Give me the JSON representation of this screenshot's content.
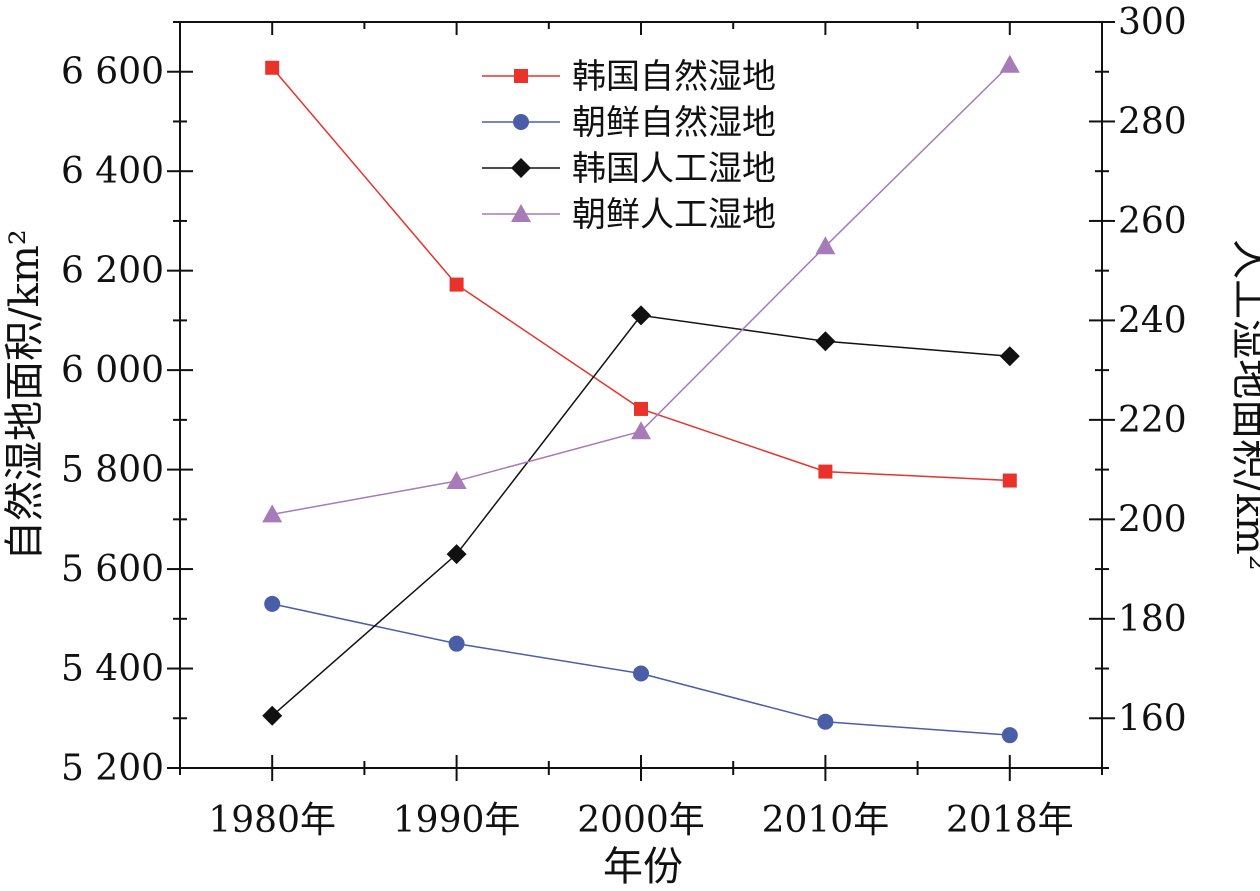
{
  "chart_data": {
    "type": "line",
    "categories": [
      "1980年",
      "1990年",
      "2000年",
      "2010年",
      "2018年"
    ],
    "xlabel": "年份",
    "ylabel": "自然湿地面积/km²",
    "y2label": "人工湿地面积/km²",
    "ylim": [
      5200,
      6700
    ],
    "y2lim": [
      150,
      300
    ],
    "yticks": [
      "5 200",
      "5 400",
      "5 600",
      "5 800",
      "6 000",
      "6 200",
      "6 400",
      "6 600"
    ],
    "y2ticks": [
      "160",
      "180",
      "200",
      "220",
      "240",
      "260",
      "280",
      "300"
    ],
    "legend_position": "top-center",
    "series": [
      {
        "name": "韩国自然湿地",
        "axis": "left",
        "marker": "square",
        "color": "#e8322a",
        "values": [
          6608,
          6172,
          5922,
          5796,
          5778
        ]
      },
      {
        "name": "朝鲜自然湿地",
        "axis": "left",
        "marker": "circle",
        "color": "#4a5ea8",
        "values": [
          5530,
          5450,
          5390,
          5293,
          5266
        ]
      },
      {
        "name": "韩国人工湿地",
        "axis": "right",
        "marker": "diamond",
        "color": "#111111",
        "values": [
          160.5,
          193.0,
          241.0,
          235.8,
          232.8
        ]
      },
      {
        "name": "朝鲜人工湿地",
        "axis": "right",
        "marker": "triangle",
        "color": "#a77ab8",
        "values": [
          201.0,
          207.7,
          217.7,
          254.9,
          291.4
        ]
      }
    ]
  }
}
